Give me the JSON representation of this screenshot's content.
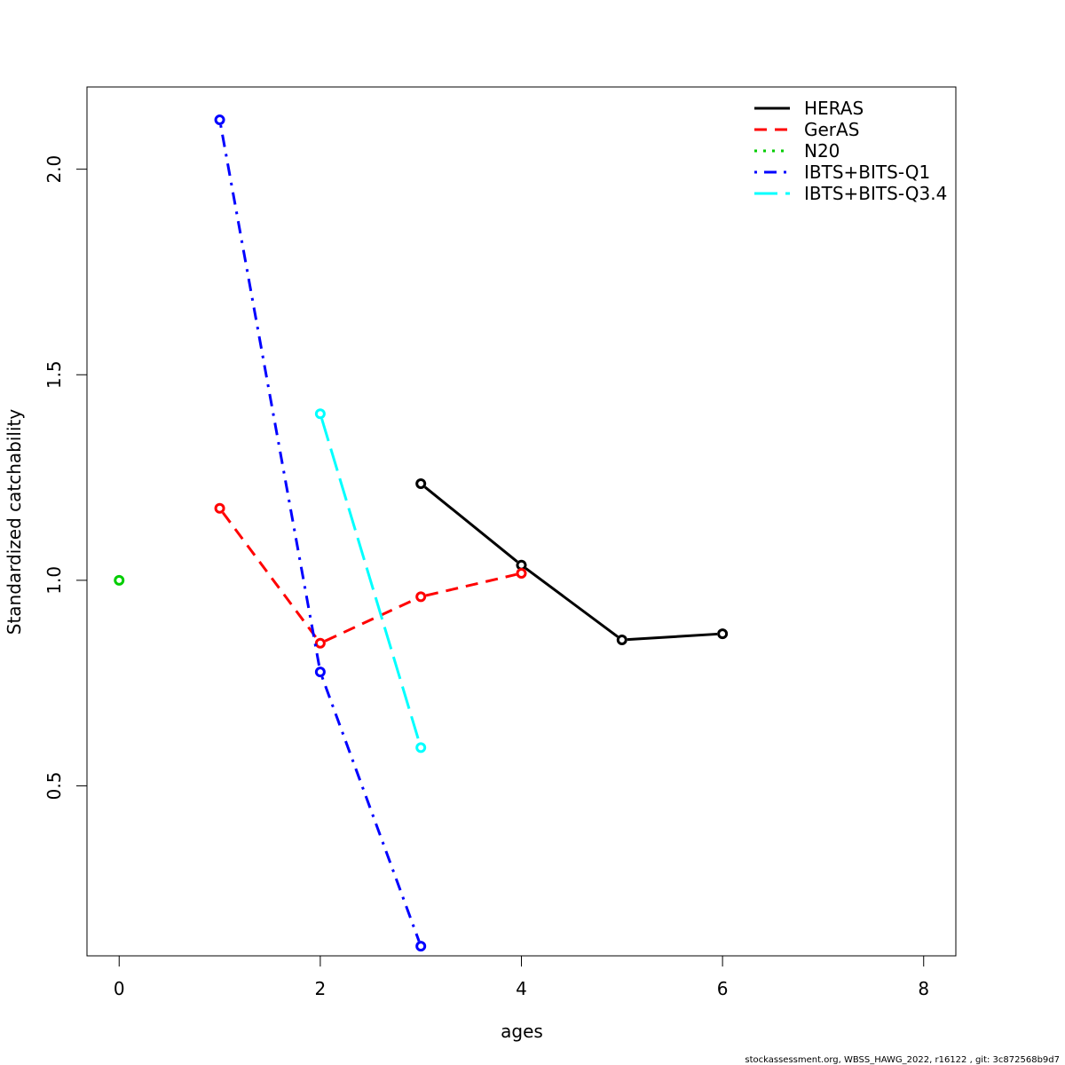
{
  "chart_data": {
    "type": "line",
    "xlabel": "ages",
    "ylabel": "Standardized catchability",
    "xlim": [
      -0.32,
      8.32
    ],
    "ylim": [
      0.0865,
      2.2
    ],
    "x_ticks": [
      0,
      2,
      4,
      6,
      8
    ],
    "y_ticks": [
      0.5,
      1.0,
      1.5,
      2.0
    ],
    "x_tick_labels": [
      "0",
      "2",
      "4",
      "6",
      "8"
    ],
    "y_tick_labels": [
      "0.5",
      "1.0",
      "1.5",
      "2.0"
    ],
    "grid": false,
    "legend_position": "top-right",
    "series": [
      {
        "name": "HERAS",
        "color": "#000000",
        "dash": "solid",
        "x": [
          3,
          4,
          5,
          6
        ],
        "y": [
          1.235,
          1.037,
          0.855,
          0.87
        ]
      },
      {
        "name": "GerAS",
        "color": "#ff0000",
        "dash": "dashed",
        "x": [
          1,
          2,
          3,
          4
        ],
        "y": [
          1.175,
          0.847,
          0.96,
          1.017
        ]
      },
      {
        "name": "N20",
        "color": "#00cd00",
        "dash": "dotted",
        "x": [
          0
        ],
        "y": [
          1.0
        ]
      },
      {
        "name": "IBTS+BITS-Q1",
        "color": "#0000ff",
        "dash": "dotdash",
        "x": [
          1,
          2,
          3
        ],
        "y": [
          2.12,
          0.777,
          0.11
        ]
      },
      {
        "name": "IBTS+BITS-Q3.4",
        "color": "#00ffff",
        "dash": "longdash",
        "x": [
          2,
          3
        ],
        "y": [
          1.405,
          0.593
        ]
      }
    ]
  },
  "footer_text": "stockassessment.org, WBSS_HAWG_2022, r16122 , git: 3c872568b9d7"
}
